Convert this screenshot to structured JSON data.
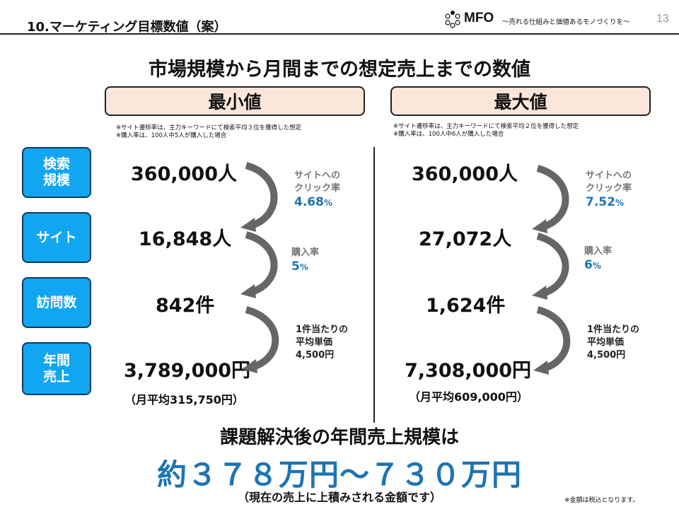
{
  "header": {
    "title": "10.マーケティング目標数値（案）",
    "logo_text": "MFO",
    "logo_tagline": "〜売れる仕組みと価値あるモノづくりを〜",
    "page_number": "13"
  },
  "main_heading": "市場規模から月間までの想定売上までの数値",
  "categories": [
    {
      "line1": "検索",
      "line2": "規模"
    },
    {
      "line1": "サイト",
      "line2": ""
    },
    {
      "line1": "訪問数",
      "line2": ""
    },
    {
      "line1": "年間",
      "line2": "売上"
    }
  ],
  "columns": {
    "min": {
      "label": "最小値",
      "note1": "※サイト遷移率は、主力キーワードにて検索平均３位を獲得した想定",
      "note2": "※購入率は、100人中5人が購入した場合",
      "search_volume": "360,000人",
      "site_visitors": "16,848人",
      "visits": "842件",
      "annual_sales": "3,789,000円",
      "monthly_avg": "（月平均315,750円）",
      "ctr_label1": "サイトへの",
      "ctr_label2": "クリック率",
      "ctr_value": "4.68",
      "ctr_unit": "%",
      "purchase_label": "購入率",
      "purchase_value": "5",
      "purchase_unit": "%",
      "unit_price_label1": "1件当たりの",
      "unit_price_label2": "平均単価",
      "unit_price_value": "4,500円"
    },
    "max": {
      "label": "最大値",
      "note1": "※サイト遷移率は、主力キーワードにて検索平均２位を獲得した想定",
      "note2": "※購入率は、100人中6人が購入した場合",
      "search_volume": "360,000人",
      "site_visitors": "27,072人",
      "visits": "1,624件",
      "annual_sales": "7,308,000円",
      "monthly_avg": "（月平均609,000円）",
      "ctr_label1": "サイトへの",
      "ctr_label2": "クリック率",
      "ctr_value": "7.52",
      "ctr_unit": "%",
      "purchase_label": "購入率",
      "purchase_value": "6",
      "purchase_unit": "%",
      "unit_price_label1": "1件当たりの",
      "unit_price_label2": "平均単価",
      "unit_price_value": "4,500円"
    }
  },
  "bottom": {
    "heading": "課題解決後の年間売上規模は",
    "range": "約３７８万円〜７３０万円",
    "subtext": "（現在の売上に上積みされる金額です）"
  },
  "footnote": "※金額は税込となります。",
  "colors": {
    "category_box": "#11a6f2",
    "rate_text": "#1e74b4",
    "pill_fill": "#fbe6da",
    "arrow": "#666666"
  },
  "icons": {
    "arrow": "curved-down-arrow-icon",
    "logo": "logo-dots-icon"
  }
}
